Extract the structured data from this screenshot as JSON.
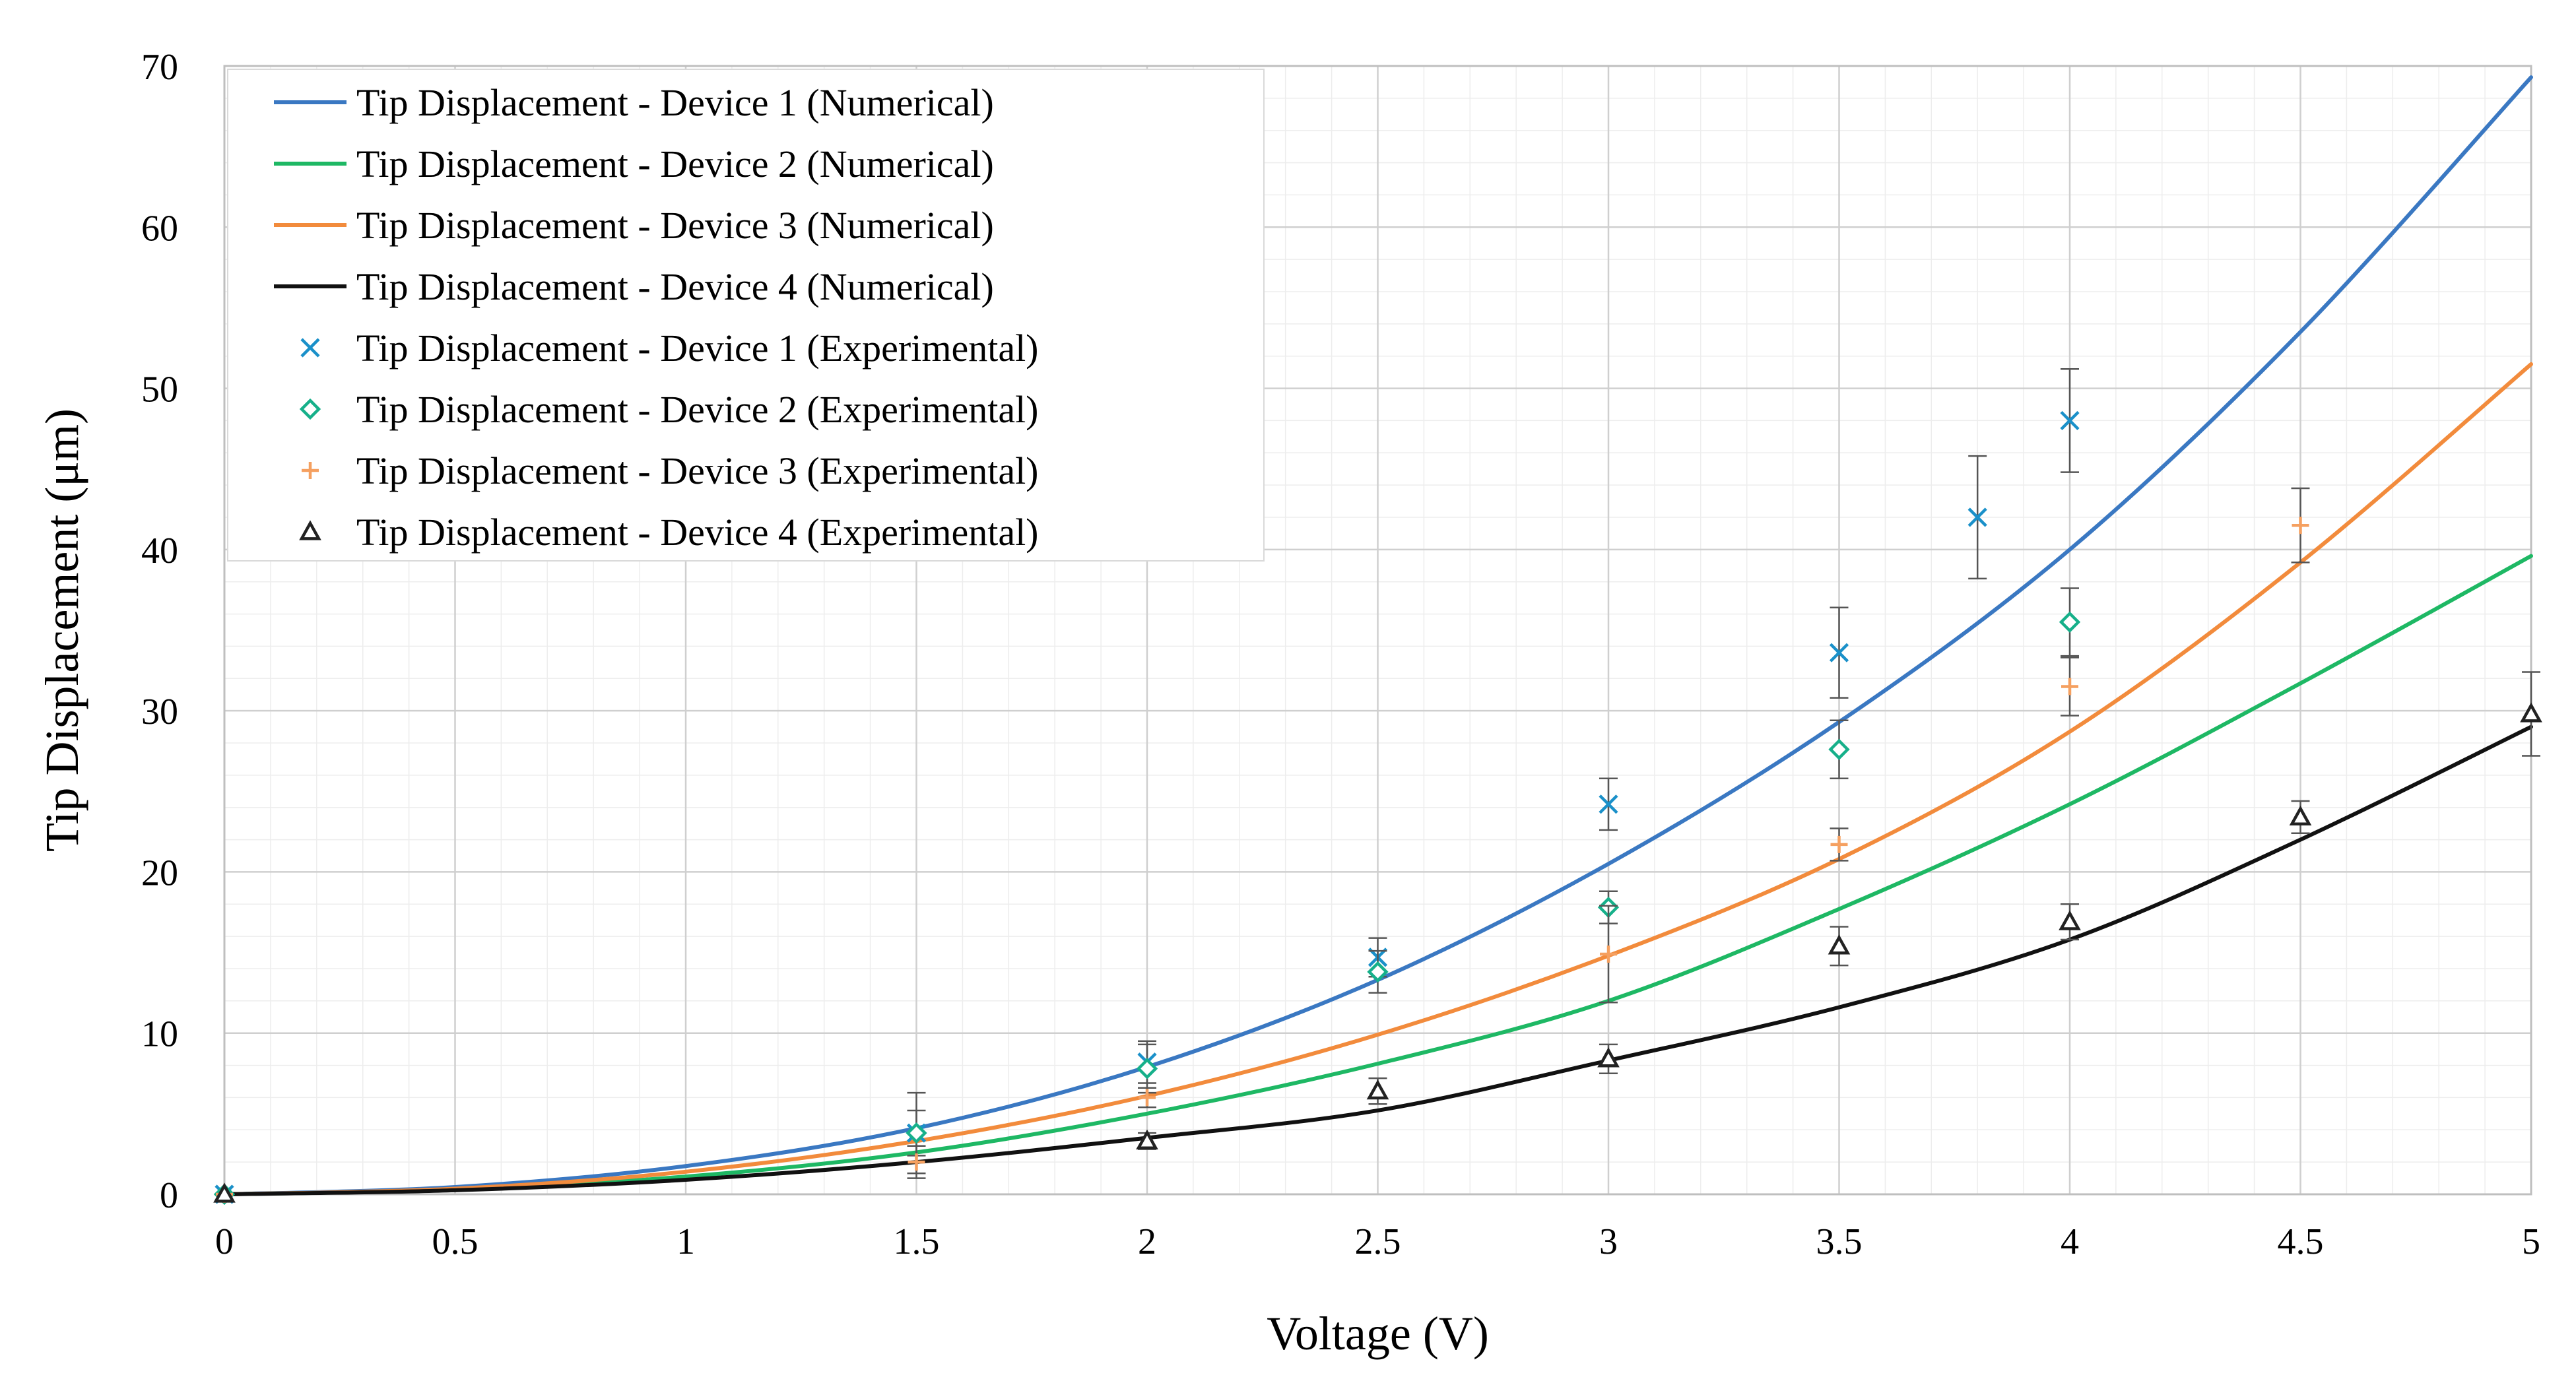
{
  "chart_data": {
    "type": "line",
    "title": "",
    "xlabel": "Voltage (V)",
    "ylabel": "Tip Displacement (μm)",
    "xlim": [
      0,
      5
    ],
    "ylim": [
      0,
      70
    ],
    "xticks": [
      "0",
      "0.5",
      "1",
      "1.5",
      "2",
      "2.5",
      "3",
      "3.5",
      "4",
      "4.5",
      "5"
    ],
    "yticks": [
      "0",
      "10",
      "20",
      "30",
      "40",
      "50",
      "60",
      "70"
    ],
    "grid": true,
    "legend_position": "top-left",
    "numerical": [
      {
        "name": "Tip Displacement - Device 1 (Numerical)",
        "color": "#3a78c2",
        "x": [
          0,
          0.5,
          1,
          1.5,
          2,
          2.5,
          3,
          3.5,
          4,
          4.5,
          5
        ],
        "y": [
          0,
          0.45,
          1.75,
          4.1,
          7.9,
          13.3,
          20.5,
          29.3,
          40.0,
          53.5,
          69.3
        ]
      },
      {
        "name": "Tip Displacement - Device 2 (Numerical)",
        "color": "#1eb864",
        "x": [
          0,
          0.5,
          1,
          1.5,
          2,
          2.5,
          3,
          3.5,
          4,
          4.5,
          5
        ],
        "y": [
          0,
          0.3,
          1.1,
          2.6,
          5.0,
          8.1,
          12.0,
          17.7,
          24.2,
          31.7,
          39.6
        ]
      },
      {
        "name": "Tip Displacement - Device 3 (Numerical)",
        "color": "#f28b3c",
        "x": [
          0,
          0.5,
          1,
          1.5,
          2,
          2.5,
          3,
          3.5,
          4,
          4.5,
          5
        ],
        "y": [
          0,
          0.35,
          1.4,
          3.3,
          6.1,
          9.9,
          14.8,
          20.8,
          28.7,
          39.2,
          51.5
        ]
      },
      {
        "name": "Tip Displacement - Device 4 (Numerical)",
        "color": "#111111",
        "x": [
          0,
          0.5,
          1,
          1.5,
          2,
          2.5,
          3,
          3.5,
          4,
          4.5,
          5
        ],
        "y": [
          0,
          0.25,
          0.9,
          2.0,
          3.5,
          5.2,
          8.3,
          11.6,
          15.8,
          22.0,
          29.0
        ]
      }
    ],
    "experimental": [
      {
        "name": "Tip Displacement - Device 1 (Experimental)",
        "color": "#1a90c9",
        "marker": "x",
        "x": [
          0,
          1.5,
          2,
          2.5,
          3,
          3.5,
          3.8,
          4
        ],
        "y": [
          0,
          3.8,
          8.2,
          14.7,
          24.2,
          33.6,
          42.0,
          48.0
        ],
        "err": [
          0,
          2.5,
          1.3,
          1.2,
          1.6,
          2.8,
          3.8,
          3.2
        ]
      },
      {
        "name": "Tip Displacement - Device 2 (Experimental)",
        "color": "#16b08a",
        "marker": "diamond",
        "x": [
          0,
          1.5,
          2,
          2.5,
          3,
          3.5,
          4
        ],
        "y": [
          0,
          3.8,
          7.8,
          13.8,
          17.8,
          27.6,
          35.5
        ],
        "err": [
          0,
          1.4,
          1.5,
          1.3,
          1.0,
          1.8,
          2.1
        ]
      },
      {
        "name": "Tip Displacement - Device 3 (Experimental)",
        "color": "#f5a060",
        "marker": "plus",
        "x": [
          0,
          1.5,
          2,
          3,
          3.5,
          4,
          4.5
        ],
        "y": [
          0,
          2.0,
          6.0,
          14.9,
          21.7,
          31.5,
          41.5
        ],
        "err": [
          0,
          1.0,
          0.6,
          3.0,
          1.0,
          1.8,
          2.3
        ]
      },
      {
        "name": "Tip Displacement - Device 4 (Experimental)",
        "color": "#222222",
        "marker": "triangle",
        "x": [
          0,
          2,
          2.5,
          3,
          3.5,
          4,
          4.5,
          5
        ],
        "y": [
          0,
          3.3,
          6.4,
          8.4,
          15.4,
          16.9,
          23.4,
          29.8
        ],
        "err": [
          0,
          0.5,
          0.8,
          0.9,
          1.2,
          1.1,
          1.0,
          2.6
        ]
      }
    ]
  }
}
